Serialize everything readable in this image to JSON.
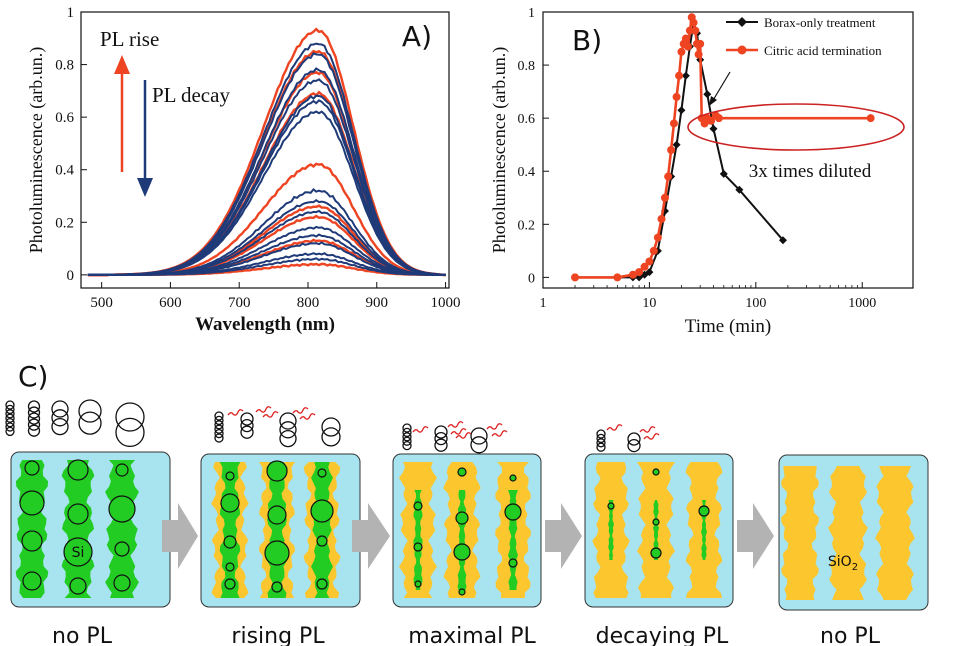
{
  "colors": {
    "red": "#ee4422",
    "blue": "#1f3a78",
    "black": "#111111",
    "green": "#22cc22",
    "yellow": "#fcc62e",
    "water": "#a8e4ef",
    "arrow": "#b3b3b3"
  },
  "panelA": {
    "label": "A)",
    "xlabel": "Wavelength (nm)",
    "ylabel": "Photoluminescence (arb.un.)",
    "rise_label": "PL rise",
    "decay_label": "PL decay"
  },
  "panelB": {
    "label": "B)",
    "xlabel": "Time (min)",
    "ylabel": "Photoluminescence (arb.un.)",
    "annotation": "3x times diluted"
  },
  "panelC": {
    "label": "C)",
    "stages": [
      {
        "caption": "no PL",
        "inner": "Si"
      },
      {
        "caption": "rising PL",
        "inner": ""
      },
      {
        "caption": "maximal PL",
        "inner": ""
      },
      {
        "caption": "decaying PL",
        "inner": ""
      },
      {
        "caption": "no PL",
        "inner": "SiO"
      }
    ],
    "sio2_sub": "2"
  },
  "chart_data": [
    {
      "type": "line",
      "title": "",
      "xlabel": "Wavelength (nm)",
      "ylabel": "Photoluminescence (arb.un.)",
      "xlim": [
        470,
        1005
      ],
      "ylim": [
        -0.05,
        1.0
      ],
      "xticks": [
        500,
        600,
        700,
        800,
        900,
        1000
      ],
      "yticks": [
        0,
        0.2,
        0.4,
        0.6,
        0.8,
        1
      ],
      "peak_wavelength": 815,
      "series": [
        {
          "name": "PL rise",
          "color": "#ee4422",
          "peaks": [
            0.04,
            0.13,
            0.22,
            0.26,
            0.42,
            0.69,
            0.77,
            0.85,
            0.93
          ]
        },
        {
          "name": "PL decay",
          "color": "#1f3a78",
          "peaks": [
            0.88,
            0.84,
            0.78,
            0.74,
            0.68,
            0.66,
            0.62,
            0.32,
            0.28,
            0.24,
            0.18,
            0.15,
            0.12,
            0.08,
            0.06
          ]
        }
      ]
    },
    {
      "type": "line",
      "xscale": "log",
      "xlabel": "Time (min)",
      "ylabel": "Photoluminescence (arb.un.)",
      "xlim": [
        1,
        3000
      ],
      "ylim": [
        -0.04,
        1.0
      ],
      "xticks": [
        1,
        10,
        100,
        1000
      ],
      "yticks": [
        0,
        0.2,
        0.4,
        0.6,
        0.8,
        1
      ],
      "legend_position": "top-right",
      "series": [
        {
          "name": "Borax-only treatment",
          "color": "#111111",
          "marker": "diamond",
          "x": [
            2,
            5,
            7,
            8,
            9,
            10,
            12,
            14,
            16,
            18,
            20,
            22,
            24,
            26,
            28,
            30,
            35,
            40,
            50,
            70,
            180
          ],
          "y": [
            0,
            0,
            0,
            0,
            0.01,
            0.02,
            0.1,
            0.25,
            0.38,
            0.5,
            0.63,
            0.76,
            0.87,
            0.96,
            0.92,
            0.82,
            0.69,
            0.56,
            0.39,
            0.33,
            0.14
          ]
        },
        {
          "name": "Citric acid termination",
          "color": "#ee4422",
          "marker": "circle",
          "x": [
            2,
            5,
            7,
            8,
            9,
            10,
            11,
            12,
            13,
            14,
            15,
            16,
            17,
            18,
            19,
            20,
            21,
            22,
            23,
            24,
            25,
            26,
            27,
            28,
            29,
            30,
            31,
            33,
            35,
            38,
            42,
            45,
            1200
          ],
          "y": [
            0,
            0,
            0.01,
            0.02,
            0.04,
            0.06,
            0.1,
            0.15,
            0.22,
            0.3,
            0.38,
            0.48,
            0.58,
            0.68,
            0.76,
            0.85,
            0.88,
            0.9,
            0.87,
            0.93,
            0.98,
            0.96,
            0.93,
            0.88,
            0.84,
            0.88,
            0.6,
            0.58,
            0.6,
            0.59,
            0.61,
            0.6,
            0.6
          ]
        }
      ]
    }
  ]
}
